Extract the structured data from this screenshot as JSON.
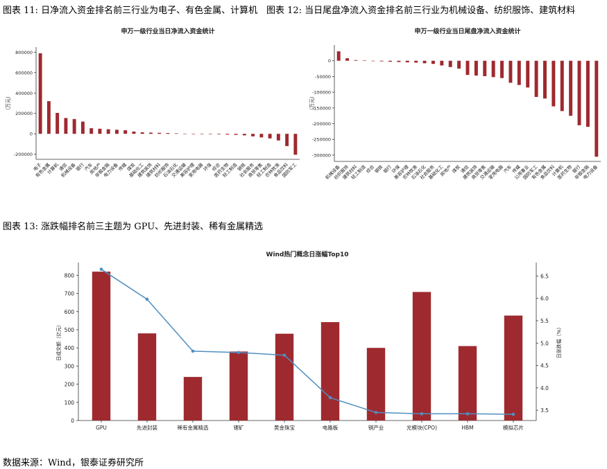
{
  "captions": {
    "fig11": "图表 11: 日净流入资金排名前三行业为电子、有色金属、计算机",
    "fig12": "图表 12: 当日尾盘净流入资金排名前三行业为机械设备、纺织服饰、建筑材料",
    "fig13": "图表 13: 涨跌幅排名前三主题为 GPU、先进封装、稀有金属精选",
    "source": "数据来源：Wind，银泰证券研究所"
  },
  "chart_data": [
    {
      "type": "bar",
      "title": "申万一级行业当日净流入资金统计",
      "ylabel": "（万元）",
      "ylim": [
        -250000,
        850000
      ],
      "yticks": [
        -200000,
        0,
        200000,
        400000,
        600000,
        800000
      ],
      "ytick_labels": [
        "-200000",
        "0",
        "200000",
        "400000",
        "600000",
        "800000"
      ],
      "categories": [
        "电子",
        "有色金属",
        "计算机",
        "通信",
        "机械设备",
        "银行",
        "汽车",
        "房地产",
        "非银金融",
        "电力设备",
        "传媒",
        "煤炭",
        "基础化工",
        "建筑装饰",
        "建筑材料",
        "纺织服饰",
        "石油石化",
        "交通运输",
        "美容护理",
        "家用电器",
        "环保",
        "综合",
        "医药生物",
        "轻工制造",
        "钢铁",
        "社会服务",
        "商贸零售",
        "轻工制造",
        "农林牧渔",
        "食品饮料",
        "国防军工"
      ],
      "values": [
        790000,
        320000,
        205000,
        155000,
        145000,
        120000,
        55000,
        50000,
        45000,
        40000,
        35000,
        22000,
        15000,
        12000,
        10000,
        8000,
        5000,
        2000,
        -2000,
        -3000,
        -4000,
        -5000,
        -8000,
        -10000,
        -15000,
        -25000,
        -35000,
        -45000,
        -65000,
        -120000,
        -205000
      ],
      "color": "#9e2a2f"
    },
    {
      "type": "bar",
      "title": "申万一级行业当日尾盘净流入资金统计",
      "ylabel": "（万元）",
      "ylim": [
        -320000,
        50000
      ],
      "yticks": [
        -300000,
        -250000,
        -200000,
        -150000,
        -100000,
        -50000,
        0
      ],
      "ytick_labels": [
        "-300000",
        "-250000",
        "-200000",
        "-150000",
        "-100000",
        "-50000",
        "0"
      ],
      "categories": [
        "机械设备",
        "纺织服饰",
        "建筑材料",
        "轻工制造",
        "综合",
        "钢铁",
        "银行",
        "环保",
        "美容护理",
        "农林牧渔",
        "石油石化",
        "社会服务",
        "基础化工",
        "房地产",
        "煤炭",
        "通信",
        "建筑装饰",
        "商贸零售",
        "交通运输",
        "家用电器",
        "汽车",
        "传媒",
        "公用事业",
        "国防军工",
        "有色金属",
        "食品饮料",
        "计算机",
        "医药生物",
        "银行",
        "非银金融",
        "电力设备"
      ],
      "values": [
        30000,
        8000,
        2000,
        1000,
        -500,
        -2000,
        -3000,
        -4000,
        -5000,
        -6000,
        -8000,
        -10000,
        -15000,
        -20000,
        -25000,
        -45000,
        -47000,
        -49000,
        -52000,
        -55000,
        -70000,
        -77000,
        -85000,
        -115000,
        -120000,
        -145000,
        -160000,
        -175000,
        -205000,
        -210000,
        -305000
      ],
      "color": "#9e2a2f"
    },
    {
      "type": "bar+line",
      "title": "Wind热门概念日涨幅Top10",
      "ylabel": "日成交额（亿元）",
      "y2label": "日涨跌幅（%）",
      "ylim": [
        0,
        870
      ],
      "y2lim": [
        3.27,
        6.8
      ],
      "yticks": [
        0,
        100,
        200,
        300,
        400,
        500,
        600,
        700,
        800
      ],
      "ytick_labels": [
        "0",
        "100",
        "200",
        "300",
        "400",
        "500",
        "600",
        "700",
        "800"
      ],
      "y2ticks": [
        3.5,
        4.0,
        4.5,
        5.0,
        5.5,
        6.0,
        6.5
      ],
      "y2tick_labels": [
        "3.5",
        "4.0",
        "4.5",
        "5.0",
        "5.5",
        "6.0",
        "6.5"
      ],
      "categories": [
        "GPU",
        "先进封装",
        "稀有金属精选",
        "锂矿",
        "黄金珠宝",
        "电路板",
        "铜产业",
        "光模块(CPO)",
        "HBM",
        "模拟芯片"
      ],
      "series": [
        {
          "name": "日成交额",
          "kind": "bar",
          "values": [
            820,
            480,
            240,
            380,
            478,
            542,
            400,
            708,
            410,
            578
          ],
          "color": "#9e2a2f"
        },
        {
          "name": "日涨跌幅",
          "kind": "line",
          "values": [
            6.65,
            5.98,
            4.82,
            4.79,
            4.73,
            3.78,
            3.45,
            3.42,
            3.42,
            3.41
          ],
          "color": "#4f8fc0"
        }
      ]
    }
  ]
}
